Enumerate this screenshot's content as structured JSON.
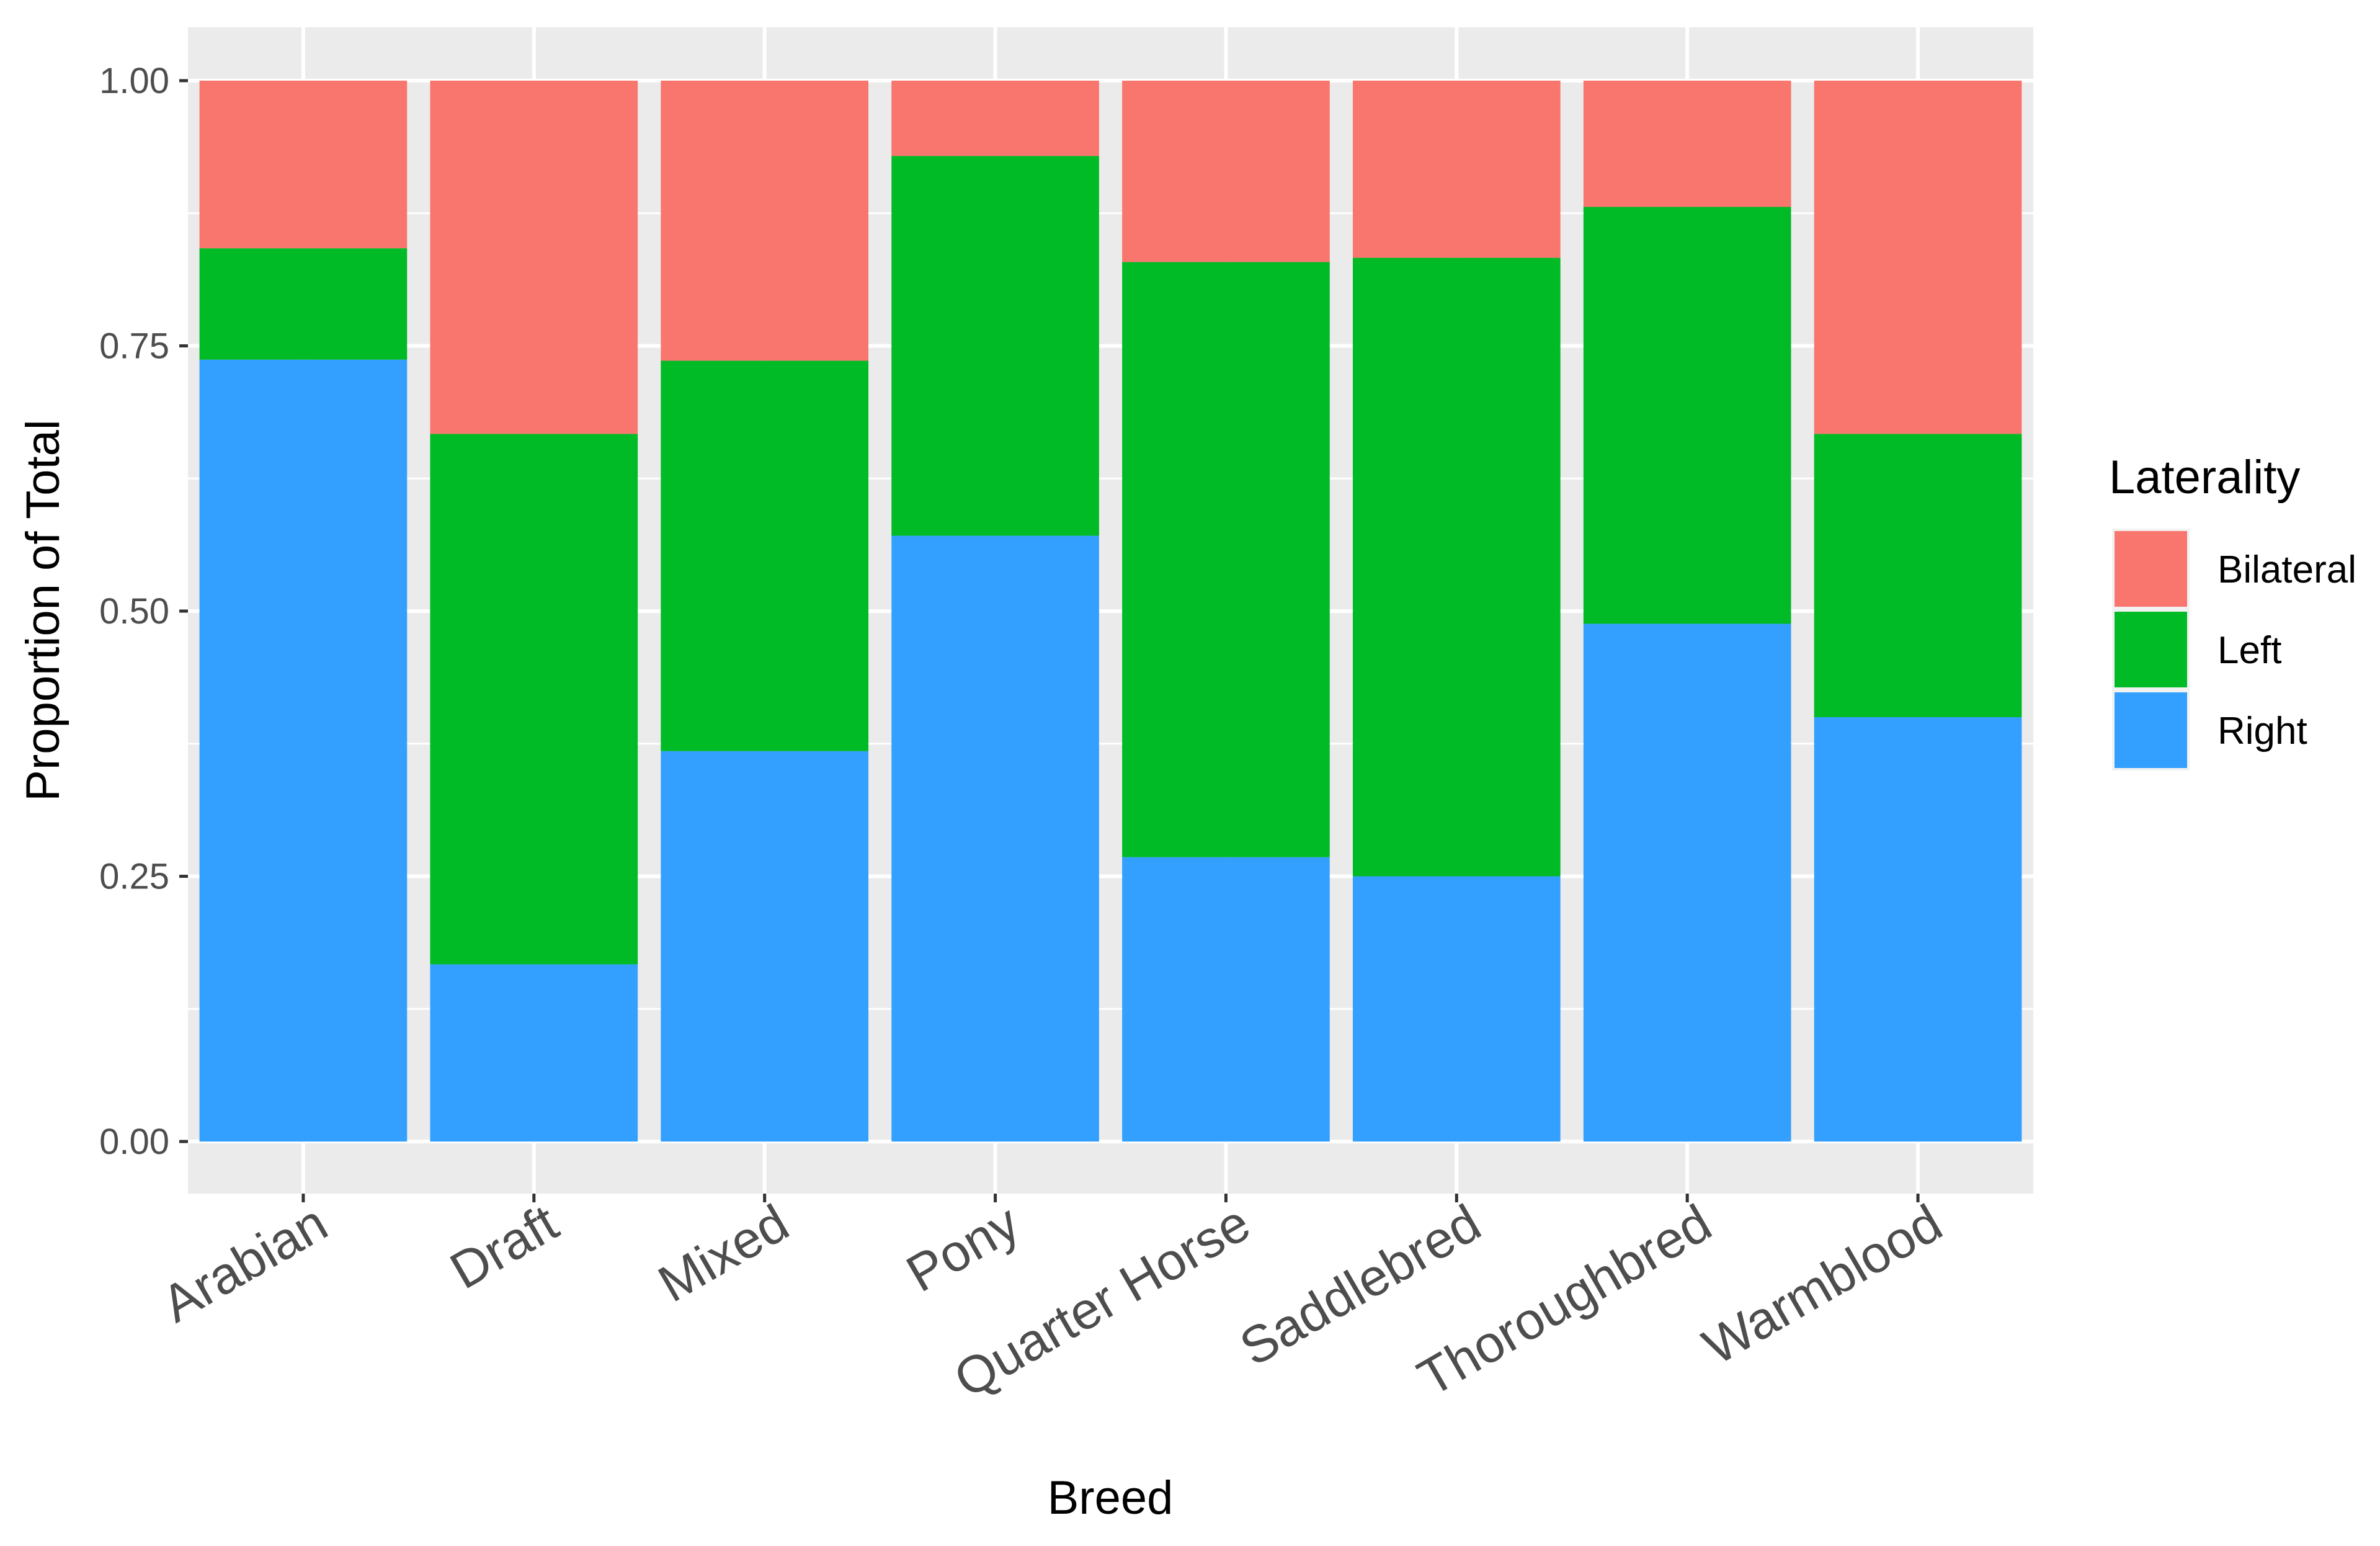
{
  "chart_data": {
    "type": "bar",
    "stacked": true,
    "title": "",
    "xlabel": "Breed",
    "ylabel": "Proportion of Total",
    "ylim": [
      0,
      1
    ],
    "yticks": [
      0,
      0.25,
      0.5,
      0.75,
      1
    ],
    "ytick_labels": [
      "0.00",
      "0.25",
      "0.50",
      "0.75",
      "1.00"
    ],
    "categories": [
      "Arabian",
      "Draft",
      "Mixed",
      "Pony",
      "Quarter Horse",
      "Saddlebred",
      "Thoroughbred",
      "Warmblood"
    ],
    "series": [
      {
        "name": "Right",
        "color": "#33A0FF",
        "values": [
          0.737,
          0.167,
          0.368,
          0.571,
          0.268,
          0.25,
          0.488,
          0.4
        ]
      },
      {
        "name": "Left",
        "color": "#00BA26",
        "values": [
          0.105,
          0.5,
          0.368,
          0.358,
          0.561,
          0.583,
          0.393,
          0.267
        ]
      },
      {
        "name": "Bilateral",
        "color": "#F8766D",
        "values": [
          0.158,
          0.333,
          0.264,
          0.071,
          0.171,
          0.167,
          0.119,
          0.333
        ]
      }
    ],
    "legend": {
      "title": "Laterality",
      "position": "right",
      "entries": [
        "Bilateral",
        "Left",
        "Right"
      ]
    },
    "grid": true
  }
}
